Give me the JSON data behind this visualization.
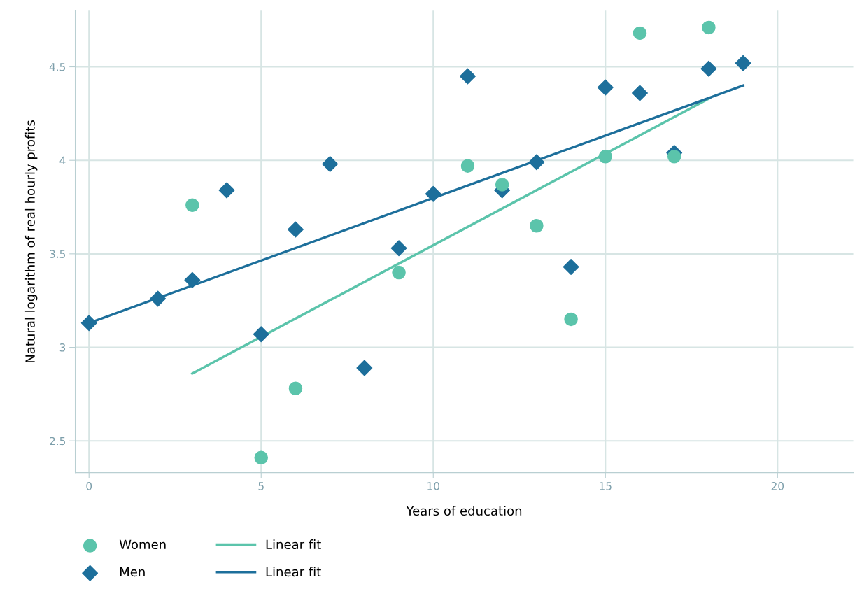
{
  "chart_data": {
    "type": "scatter",
    "xlabel": "Years of education",
    "ylabel": "Natural logarithm of real hourly profits",
    "xlim": [
      -0.4,
      22.2
    ],
    "xticks": [
      0,
      5,
      10,
      15,
      20
    ],
    "ylim": [
      2.33,
      4.8
    ],
    "yticks": [
      2.5,
      3,
      3.5,
      4,
      4.5
    ],
    "grid": true,
    "legend": "bottom",
    "series": [
      {
        "name": "Women",
        "marker": "circle",
        "color": "#5bc4ab",
        "x": [
          3,
          5,
          6,
          9,
          11,
          12,
          13,
          14,
          15,
          16,
          17,
          18
        ],
        "values": [
          3.76,
          2.41,
          2.78,
          3.4,
          3.97,
          3.87,
          3.65,
          3.15,
          4.02,
          4.68,
          4.02,
          4.71
        ]
      },
      {
        "name": "Men",
        "marker": "diamond",
        "color": "#1d6f9b",
        "x": [
          0,
          2,
          3,
          4,
          5,
          6,
          7,
          8,
          9,
          10,
          11,
          12,
          13,
          14,
          15,
          16,
          17,
          18,
          19
        ],
        "values": [
          3.13,
          3.26,
          3.36,
          3.84,
          3.07,
          3.63,
          3.98,
          2.89,
          3.53,
          3.82,
          4.45,
          3.84,
          3.99,
          3.43,
          4.39,
          4.36,
          4.04,
          4.49,
          4.52
        ]
      },
      {
        "name": "Linear fit",
        "type": "line",
        "marker": "none",
        "color": "#5bc4ab",
        "x": [
          3,
          18
        ],
        "values": [
          2.86,
          4.33
        ]
      },
      {
        "name": "Linear fit",
        "type": "line",
        "marker": "none",
        "color": "#1d6f9b",
        "x": [
          0,
          19
        ],
        "values": [
          3.13,
          4.4
        ]
      }
    ]
  }
}
